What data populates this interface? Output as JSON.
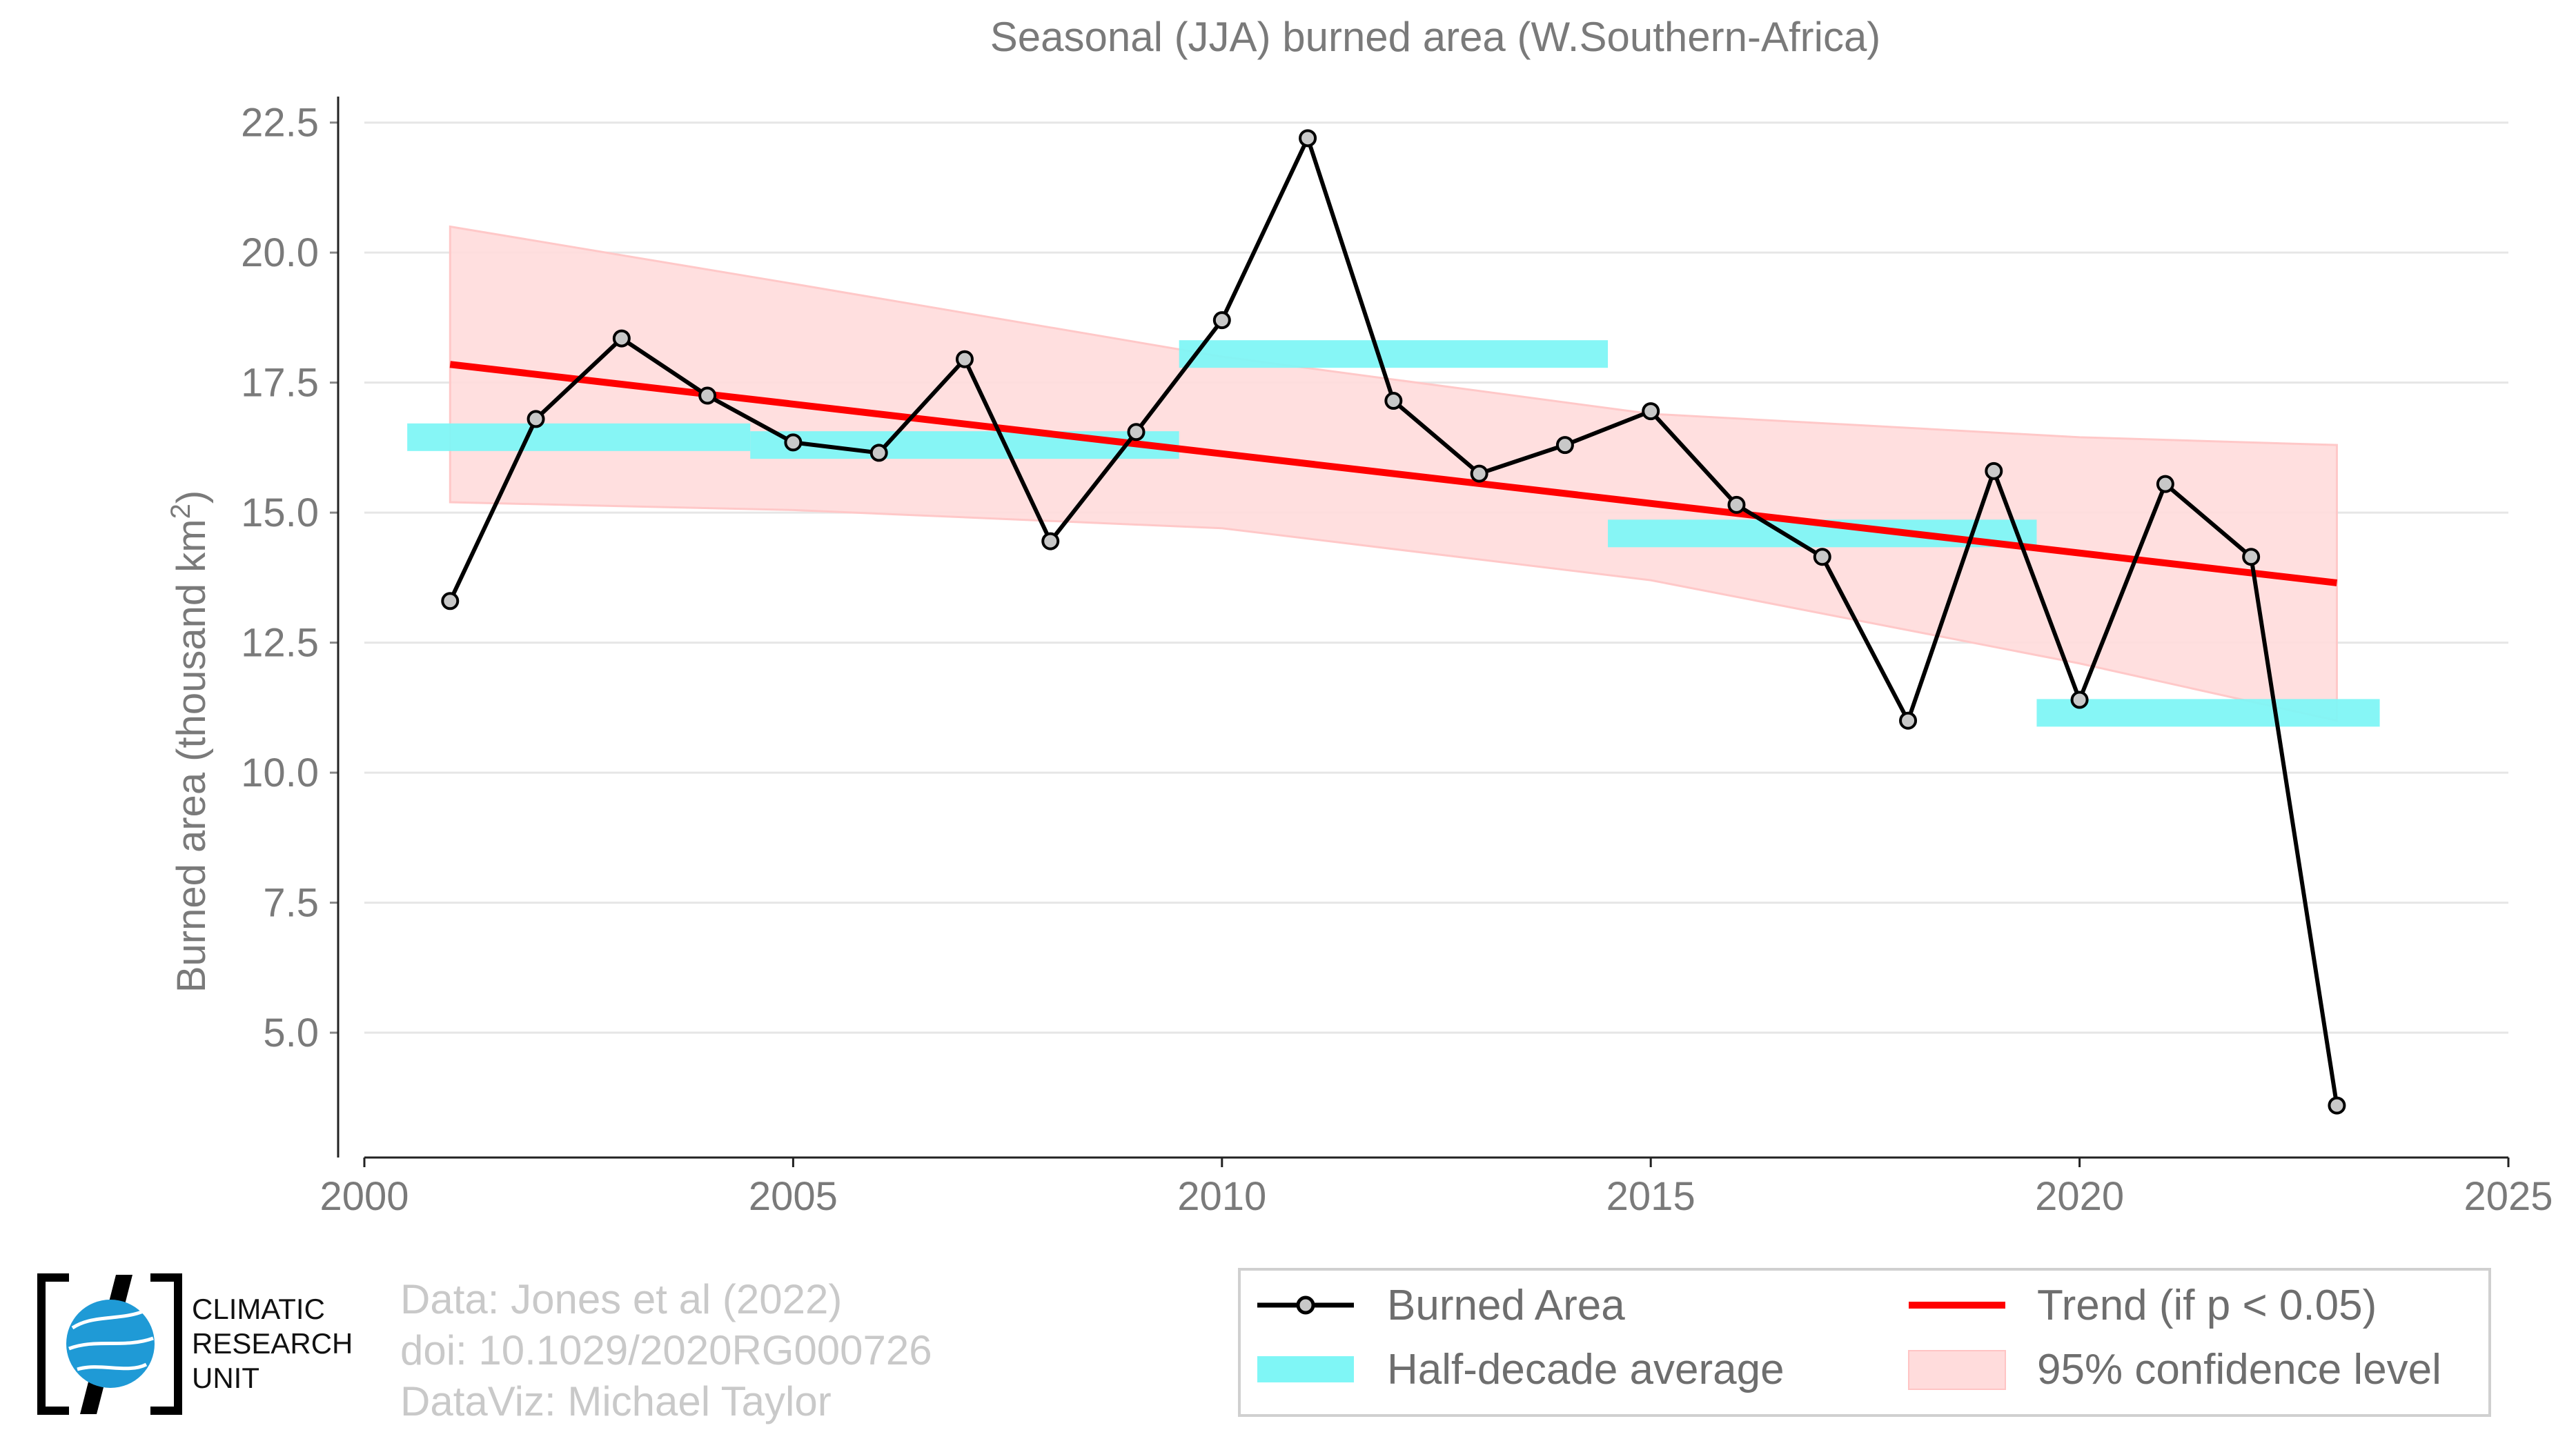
{
  "chart_data": {
    "type": "line",
    "title": "Seasonal (JJA) burned area (W.Southern-Africa)",
    "ylabel": "Burned area (thousand km",
    "ylabel_superscript": "2",
    "ylabel_close": ")",
    "xlim": [
      2000,
      2025
    ],
    "ylim": [
      2.6,
      23.0
    ],
    "x_ticks": [
      2000,
      2005,
      2010,
      2015,
      2020,
      2025
    ],
    "y_ticks": [
      5.0,
      7.5,
      10.0,
      12.5,
      15.0,
      17.5,
      20.0,
      22.5
    ],
    "grid": "horizontal",
    "series": [
      {
        "name": "Burned Area",
        "color": "#000000",
        "marker_fill": "#c8c8c8",
        "x": [
          2001,
          2002,
          2003,
          2004,
          2005,
          2006,
          2007,
          2008,
          2009,
          2010,
          2011,
          2012,
          2013,
          2014,
          2015,
          2016,
          2017,
          2018,
          2019,
          2020,
          2021,
          2022,
          2023
        ],
        "y": [
          13.3,
          16.8,
          18.35,
          17.25,
          16.35,
          16.15,
          17.95,
          14.45,
          16.55,
          18.7,
          22.2,
          17.15,
          15.75,
          16.3,
          16.95,
          15.15,
          14.15,
          11.0,
          15.8,
          11.4,
          15.55,
          14.15,
          3.6
        ]
      },
      {
        "name": "Trend (if p < 0.05)",
        "color": "#ff0000",
        "x": [
          2001,
          2023
        ],
        "y": [
          17.85,
          13.65
        ]
      }
    ],
    "half_decade_average": {
      "name": "Half-decade average",
      "color": "#7ff6f6",
      "segments": [
        {
          "x0": 2000.5,
          "x1": 2004.5,
          "y": 16.45
        },
        {
          "x0": 2004.5,
          "x1": 2009.5,
          "y": 16.3
        },
        {
          "x0": 2009.5,
          "x1": 2014.5,
          "y": 18.05
        },
        {
          "x0": 2014.5,
          "x1": 2019.5,
          "y": 14.6
        },
        {
          "x0": 2019.5,
          "x1": 2023.5,
          "y": 11.15
        }
      ]
    },
    "confidence_band": {
      "name": "95% confidence level",
      "color": "#ffdcdc",
      "x": [
        2001,
        2005,
        2010,
        2015,
        2020,
        2023
      ],
      "upper": [
        20.5,
        19.4,
        18.0,
        16.9,
        16.45,
        16.3
      ],
      "lower": [
        15.2,
        15.05,
        14.7,
        13.7,
        12.1,
        11.0
      ]
    },
    "legend": {
      "placement": "bottom-right",
      "items": [
        {
          "label": "Burned Area",
          "kind": "line-marker",
          "color": "#000000"
        },
        {
          "label": "Trend (if p < 0.05)",
          "kind": "line",
          "color": "#ff0000"
        },
        {
          "label": "Half-decade average",
          "kind": "band",
          "color": "#7ff6f6"
        },
        {
          "label": "95% confidence level",
          "kind": "patch",
          "color": "#ffdcdc"
        }
      ]
    }
  },
  "credits": {
    "line1": "Data: Jones et al (2022)",
    "line2": "doi: 10.1029/2020RG000726",
    "line3": "DataViz: Michael Taylor"
  },
  "logo": {
    "line1": "CLIMATIC",
    "line2": "RESEARCH",
    "line3": "UNIT",
    "icon": "globe-icon",
    "accent": "#1f9ad6"
  }
}
